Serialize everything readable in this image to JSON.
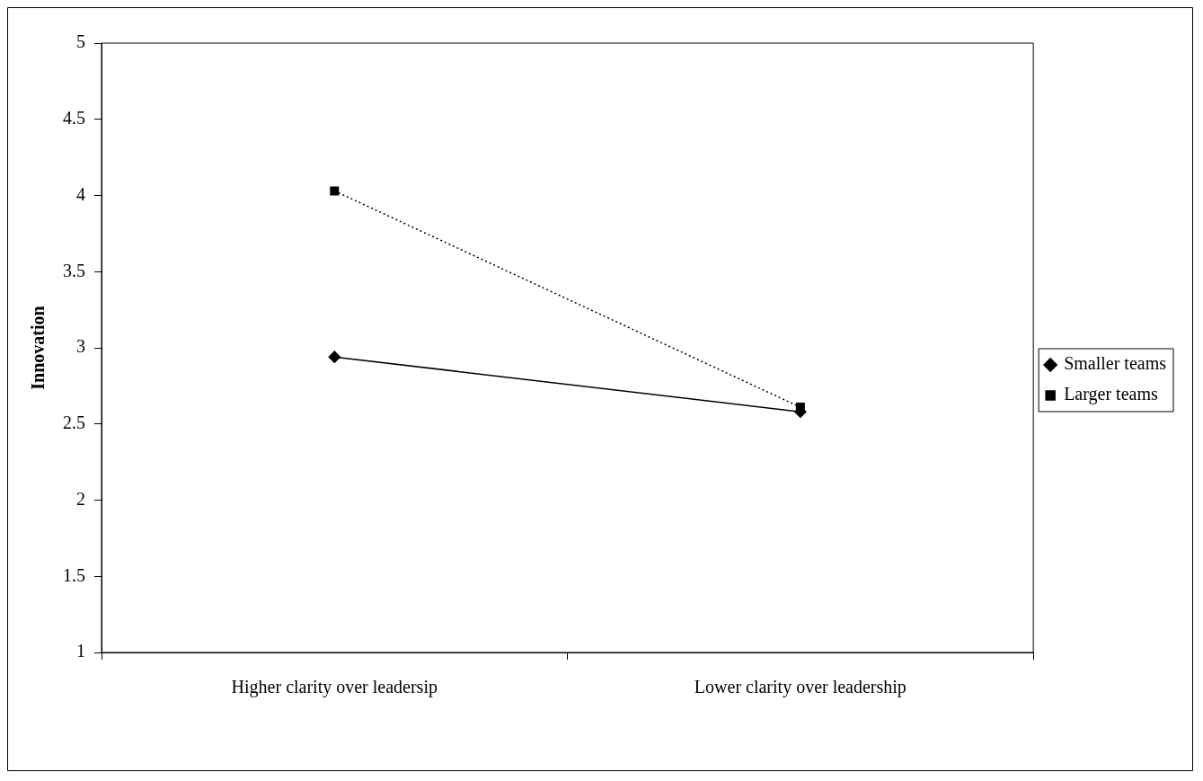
{
  "chart_data": {
    "type": "line",
    "ylabel": "Innovation",
    "categories": [
      "Higher clarity over leadersip",
      "Lower clarity over leadership"
    ],
    "series": [
      {
        "name": "Smaller teams",
        "color": "#000000",
        "values": [
          2.94,
          2.58
        ],
        "marker": "diamond",
        "line_style": "solid"
      },
      {
        "name": "Larger teams",
        "color": "#000000",
        "values": [
          4.03,
          2.61
        ],
        "marker": "square",
        "line_style": "dotted"
      }
    ],
    "ylim": [
      1,
      5
    ],
    "yticks": [
      1,
      1.5,
      2,
      2.5,
      3,
      3.5,
      4,
      4.5,
      5
    ],
    "grid": false,
    "legend": "right"
  }
}
